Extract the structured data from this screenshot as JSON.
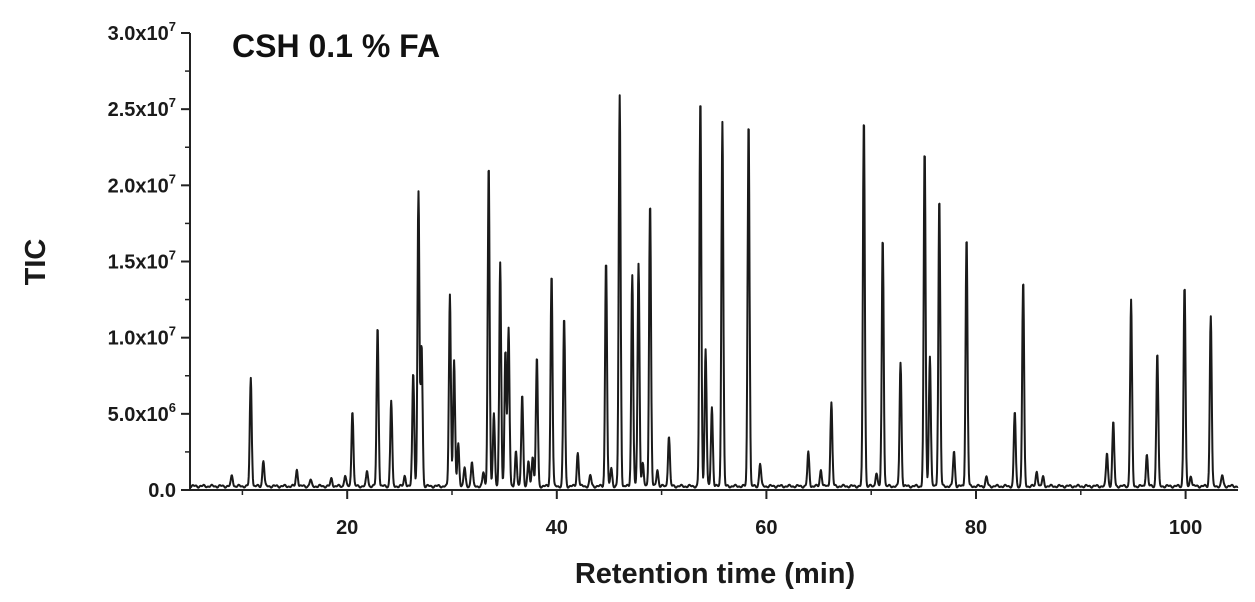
{
  "chart_data": {
    "type": "line",
    "title": "CSH 0.1 % FA",
    "xlabel": "Retention time (min)",
    "ylabel": "TIC",
    "xlim": [
      5,
      105
    ],
    "ylim": [
      0,
      30000000
    ],
    "x_ticks": [
      20,
      40,
      60,
      80,
      100
    ],
    "x_tick_labels": [
      "20",
      "40",
      "60",
      "80",
      "100"
    ],
    "y_ticks": [
      0,
      5000000,
      10000000,
      15000000,
      20000000,
      25000000,
      30000000
    ],
    "y_tick_labels": [
      {
        "base": "0.0",
        "exp": ""
      },
      {
        "base": "5.0x10",
        "exp": "6"
      },
      {
        "base": "1.0x10",
        "exp": "7"
      },
      {
        "base": "1.5x10",
        "exp": "7"
      },
      {
        "base": "2.0x10",
        "exp": "7"
      },
      {
        "base": "2.5x10",
        "exp": "7"
      },
      {
        "base": "3.0x10",
        "exp": "7"
      }
    ],
    "grid": false,
    "line_color": "#1a1a1a",
    "baseline": 250000,
    "peaks": [
      [
        9.0,
        700000
      ],
      [
        10.8,
        7100000
      ],
      [
        12.0,
        1700000
      ],
      [
        15.2,
        1100000
      ],
      [
        16.5,
        400000
      ],
      [
        18.5,
        500000
      ],
      [
        19.8,
        700000
      ],
      [
        20.5,
        5000000
      ],
      [
        21.9,
        1000000
      ],
      [
        22.9,
        10500000
      ],
      [
        24.2,
        5600000
      ],
      [
        25.5,
        700000
      ],
      [
        26.3,
        7500000
      ],
      [
        26.8,
        19300000
      ],
      [
        27.1,
        9300000
      ],
      [
        29.8,
        12600000
      ],
      [
        30.2,
        8200000
      ],
      [
        30.6,
        2800000
      ],
      [
        31.2,
        1200000
      ],
      [
        31.9,
        1600000
      ],
      [
        33.0,
        900000
      ],
      [
        33.5,
        21200000
      ],
      [
        34.0,
        4800000
      ],
      [
        34.6,
        14600000
      ],
      [
        35.1,
        9000000
      ],
      [
        35.4,
        10300000
      ],
      [
        36.1,
        2300000
      ],
      [
        36.7,
        6100000
      ],
      [
        37.3,
        1600000
      ],
      [
        37.7,
        2000000
      ],
      [
        38.1,
        8500000
      ],
      [
        39.5,
        14000000
      ],
      [
        40.7,
        11100000
      ],
      [
        42.0,
        2200000
      ],
      [
        43.2,
        700000
      ],
      [
        44.7,
        14900000
      ],
      [
        45.2,
        1200000
      ],
      [
        46.0,
        25600000
      ],
      [
        47.2,
        13900000
      ],
      [
        47.8,
        14600000
      ],
      [
        48.2,
        1500000
      ],
      [
        48.9,
        18700000
      ],
      [
        49.6,
        1100000
      ],
      [
        50.7,
        3300000
      ],
      [
        53.7,
        25500000
      ],
      [
        54.2,
        9000000
      ],
      [
        54.8,
        5200000
      ],
      [
        55.8,
        24000000
      ],
      [
        58.3,
        24100000
      ],
      [
        59.4,
        1500000
      ],
      [
        64.0,
        2200000
      ],
      [
        65.2,
        1100000
      ],
      [
        66.2,
        5500000
      ],
      [
        69.3,
        24300000
      ],
      [
        70.5,
        900000
      ],
      [
        71.1,
        16400000
      ],
      [
        72.8,
        8100000
      ],
      [
        75.1,
        22100000
      ],
      [
        75.6,
        8600000
      ],
      [
        76.5,
        19000000
      ],
      [
        77.9,
        2300000
      ],
      [
        79.1,
        16400000
      ],
      [
        81.0,
        600000
      ],
      [
        83.7,
        4900000
      ],
      [
        84.5,
        13500000
      ],
      [
        85.8,
        1000000
      ],
      [
        86.4,
        600000
      ],
      [
        92.5,
        2200000
      ],
      [
        93.1,
        4200000
      ],
      [
        94.8,
        12200000
      ],
      [
        96.3,
        2100000
      ],
      [
        97.3,
        8800000
      ],
      [
        99.9,
        13200000
      ],
      [
        100.5,
        700000
      ],
      [
        102.4,
        11200000
      ],
      [
        103.5,
        700000
      ]
    ]
  }
}
